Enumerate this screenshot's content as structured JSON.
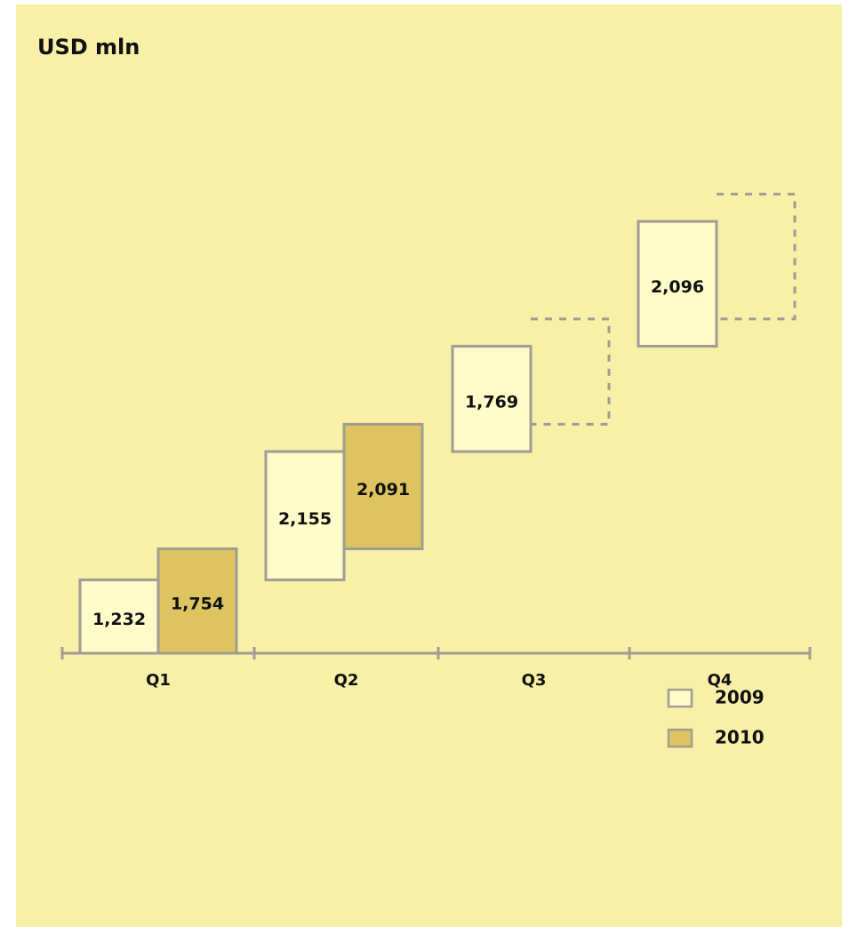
{
  "chart_data": {
    "type": "waterfall",
    "unit_label": "USD mln",
    "categories": [
      "Q1",
      "Q2",
      "Q3",
      "Q4"
    ],
    "series": [
      {
        "name": "2009",
        "values": [
          1232,
          2155,
          1769,
          2096
        ],
        "color": "#fdfcc8"
      },
      {
        "name": "2010",
        "values": [
          1754,
          2091,
          null,
          null
        ],
        "color": "#ddc460"
      }
    ],
    "value_labels": {
      "2009": [
        "1,232",
        "2,155",
        "1,769",
        "2,096"
      ],
      "2010": [
        "1,754",
        "2,091",
        "",
        ""
      ]
    },
    "y_range": [
      0,
      10000
    ],
    "legend_position": "bottom-right",
    "placeholder_style": "dashed",
    "grid": false
  },
  "colors": {
    "background": "#f7f0a6",
    "bar_2009": "#fdfcc8",
    "bar_2010": "#ddc460",
    "outline": "#a19c94"
  }
}
